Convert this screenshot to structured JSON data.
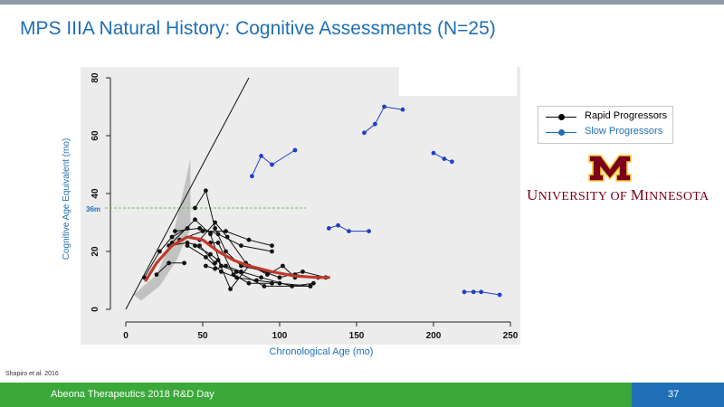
{
  "slide": {
    "title": "MPS IIIA Natural History: Cognitive Assessments (N=25)",
    "citation": "Shapiro et al. 2016",
    "footer_text": "Abeona Therapeutics 2018 R&D Day",
    "page_number": "37",
    "logo_text": "University of Minnesota",
    "colors": {
      "title": "#1f6fb6",
      "footer": "#3aa93a",
      "page_box": "#1f6fb6",
      "umn_maroon": "#7a0019",
      "umn_gold": "#ffcc33"
    }
  },
  "chart_data": {
    "type": "line",
    "xlabel": "Chronological Age (mo)",
    "ylabel": "Cognitive Age Equivalent (mo)",
    "xlim": [
      -30,
      255
    ],
    "ylim": [
      -8,
      84
    ],
    "xticks": [
      "0",
      "50",
      "100",
      "150",
      "200",
      "250"
    ],
    "yticks": [
      "0",
      "20",
      "40",
      "60",
      "80"
    ],
    "grid": false,
    "legend_position": "right",
    "annotations": [
      {
        "text": "36m",
        "y": 35,
        "style": "dashed-green-line"
      }
    ],
    "legend": [
      {
        "name": "Rapid Progressors",
        "color": "#000000"
      },
      {
        "name": "Slow Progressors",
        "color": "#1f6fb6"
      }
    ],
    "reference_line": {
      "points": [
        [
          0,
          0
        ],
        [
          80,
          80
        ]
      ],
      "color": "#000000"
    },
    "shaded_band": [
      [
        5,
        5
      ],
      [
        20,
        12
      ],
      [
        30,
        24
      ],
      [
        37,
        40
      ],
      [
        42,
        52
      ],
      [
        42,
        28
      ],
      [
        33,
        17
      ],
      [
        22,
        8
      ],
      [
        10,
        3
      ]
    ],
    "fitted_curve": {
      "color": "#c0392b",
      "points": [
        [
          13,
          10
        ],
        [
          20,
          16
        ],
        [
          30,
          22
        ],
        [
          40,
          25
        ],
        [
          50,
          24
        ],
        [
          60,
          20
        ],
        [
          70,
          17
        ],
        [
          80,
          15
        ],
        [
          95,
          13
        ],
        [
          110,
          11.5
        ],
        [
          125,
          11
        ],
        [
          132,
          11
        ]
      ]
    },
    "series": [
      {
        "group": "rapid",
        "points": [
          [
            12,
            11
          ],
          [
            22,
            20
          ],
          [
            30,
            25
          ],
          [
            40,
            28
          ]
        ]
      },
      {
        "group": "rapid",
        "points": [
          [
            20,
            12
          ],
          [
            28,
            16
          ],
          [
            38,
            16
          ]
        ]
      },
      {
        "group": "rapid",
        "points": [
          [
            28,
            22
          ],
          [
            40,
            23
          ],
          [
            48,
            22
          ],
          [
            58,
            16
          ]
        ]
      },
      {
        "group": "rapid",
        "points": [
          [
            30,
            23
          ],
          [
            45,
            31
          ],
          [
            55,
            26
          ],
          [
            62,
            15
          ],
          [
            72,
            13
          ],
          [
            90,
            8
          ],
          [
            120,
            8
          ]
        ]
      },
      {
        "group": "rapid",
        "points": [
          [
            32,
            27
          ],
          [
            48,
            28
          ],
          [
            60,
            26
          ],
          [
            75,
            22
          ],
          [
            95,
            20
          ]
        ]
      },
      {
        "group": "rapid",
        "points": [
          [
            35,
            24
          ],
          [
            50,
            27
          ],
          [
            65,
            27
          ],
          [
            80,
            24
          ],
          [
            95,
            22
          ]
        ]
      },
      {
        "group": "rapid",
        "points": [
          [
            40,
            22
          ],
          [
            52,
            18
          ],
          [
            62,
            13
          ],
          [
            72,
            11
          ],
          [
            85,
            10
          ],
          [
            100,
            9
          ],
          [
            120,
            8
          ]
        ]
      },
      {
        "group": "rapid",
        "points": [
          [
            45,
            35
          ],
          [
            52,
            41
          ],
          [
            58,
            28
          ],
          [
            65,
            20
          ],
          [
            75,
            15
          ],
          [
            92,
            13
          ],
          [
            110,
            12
          ],
          [
            125,
            11
          ]
        ]
      },
      {
        "group": "rapid",
        "points": [
          [
            45,
            22
          ],
          [
            55,
            19
          ],
          [
            60,
            17
          ],
          [
            68,
            7
          ],
          [
            80,
            15
          ],
          [
            100,
            11
          ],
          [
            115,
            13
          ],
          [
            130,
            11
          ]
        ]
      },
      {
        "group": "rapid",
        "points": [
          [
            52,
            15
          ],
          [
            58,
            14
          ],
          [
            65,
            15
          ],
          [
            75,
            13
          ],
          [
            88,
            11
          ],
          [
            108,
            8
          ],
          [
            122,
            9
          ]
        ]
      },
      {
        "group": "rapid",
        "points": [
          [
            48,
            24
          ],
          [
            58,
            30
          ],
          [
            66,
            25
          ],
          [
            78,
            16
          ],
          [
            92,
            12
          ],
          [
            102,
            15
          ],
          [
            110,
            11
          ]
        ]
      },
      {
        "group": "rapid",
        "points": [
          [
            55,
            23
          ],
          [
            60,
            23
          ],
          [
            70,
            12
          ],
          [
            80,
            9
          ],
          [
            95,
            9
          ]
        ]
      },
      {
        "group": "slow",
        "points": [
          [
            82,
            46
          ],
          [
            88,
            53
          ],
          [
            95,
            50
          ],
          [
            110,
            55
          ]
        ]
      },
      {
        "group": "slow",
        "points": [
          [
            155,
            61
          ],
          [
            162,
            64
          ],
          [
            168,
            70
          ],
          [
            180,
            69
          ]
        ]
      },
      {
        "group": "slow",
        "points": [
          [
            132,
            28
          ],
          [
            138,
            29
          ],
          [
            145,
            27
          ],
          [
            158,
            27
          ]
        ]
      },
      {
        "group": "slow",
        "points": [
          [
            200,
            54
          ],
          [
            207,
            52
          ],
          [
            212,
            51
          ]
        ]
      },
      {
        "group": "slow",
        "points": [
          [
            220,
            6
          ],
          [
            226,
            6
          ],
          [
            231,
            6
          ],
          [
            243,
            5
          ]
        ]
      }
    ]
  }
}
